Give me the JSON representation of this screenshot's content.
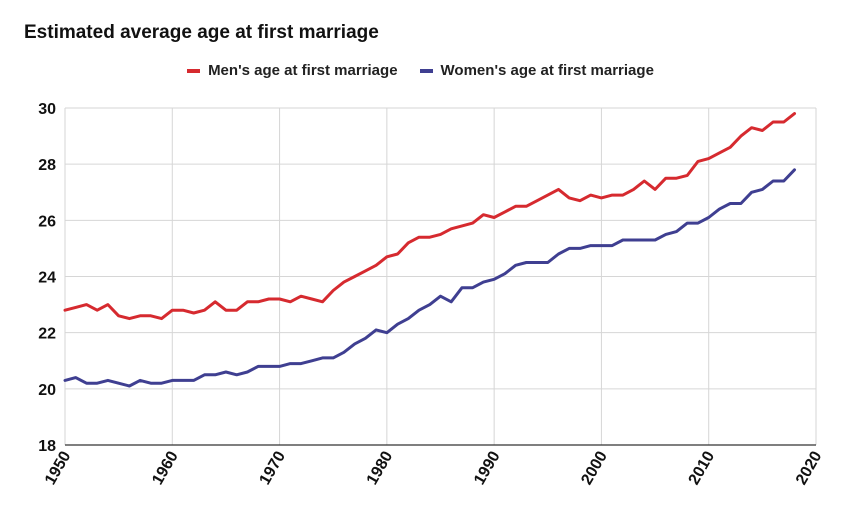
{
  "chart_data": {
    "type": "line",
    "title": "Estimated average age at first marriage",
    "legend_position": "top-center",
    "grid": true,
    "xlim": [
      1950,
      2020
    ],
    "ylim": [
      18,
      30
    ],
    "x_ticks": [
      1950,
      1960,
      1970,
      1980,
      1990,
      2000,
      2010,
      2020
    ],
    "y_ticks": [
      18,
      20,
      22,
      24,
      26,
      28,
      30
    ],
    "x": [
      1950,
      1951,
      1952,
      1953,
      1954,
      1955,
      1956,
      1957,
      1958,
      1959,
      1960,
      1961,
      1962,
      1963,
      1964,
      1965,
      1966,
      1967,
      1968,
      1969,
      1970,
      1971,
      1972,
      1973,
      1974,
      1975,
      1976,
      1977,
      1978,
      1979,
      1980,
      1981,
      1982,
      1983,
      1984,
      1985,
      1986,
      1987,
      1988,
      1989,
      1990,
      1991,
      1992,
      1993,
      1994,
      1995,
      1996,
      1997,
      1998,
      1999,
      2000,
      2001,
      2002,
      2003,
      2004,
      2005,
      2006,
      2007,
      2008,
      2009,
      2010,
      2011,
      2012,
      2013,
      2014,
      2015,
      2016,
      2017,
      2018
    ],
    "series": [
      {
        "name": "Men's age at first marriage",
        "color": "#d62a2f",
        "values": [
          22.8,
          22.9,
          23.0,
          22.8,
          23.0,
          22.6,
          22.5,
          22.6,
          22.6,
          22.5,
          22.8,
          22.8,
          22.7,
          22.8,
          23.1,
          22.8,
          22.8,
          23.1,
          23.1,
          23.2,
          23.2,
          23.1,
          23.3,
          23.2,
          23.1,
          23.5,
          23.8,
          24.0,
          24.2,
          24.4,
          24.7,
          24.8,
          25.2,
          25.4,
          25.4,
          25.5,
          25.7,
          25.8,
          25.9,
          26.2,
          26.1,
          26.3,
          26.5,
          26.5,
          26.7,
          26.9,
          27.1,
          26.8,
          26.7,
          26.9,
          26.8,
          26.9,
          26.9,
          27.1,
          27.4,
          27.1,
          27.5,
          27.5,
          27.6,
          28.1,
          28.2,
          28.4,
          28.6,
          29.0,
          29.3,
          29.2,
          29.5,
          29.5,
          29.8
        ]
      },
      {
        "name": "Women's age at first marriage",
        "color": "#3f3f91",
        "values": [
          20.3,
          20.4,
          20.2,
          20.2,
          20.3,
          20.2,
          20.1,
          20.3,
          20.2,
          20.2,
          20.3,
          20.3,
          20.3,
          20.5,
          20.5,
          20.6,
          20.5,
          20.6,
          20.8,
          20.8,
          20.8,
          20.9,
          20.9,
          21.0,
          21.1,
          21.1,
          21.3,
          21.6,
          21.8,
          22.1,
          22.0,
          22.3,
          22.5,
          22.8,
          23.0,
          23.3,
          23.1,
          23.6,
          23.6,
          23.8,
          23.9,
          24.1,
          24.4,
          24.5,
          24.5,
          24.5,
          24.8,
          25.0,
          25.0,
          25.1,
          25.1,
          25.1,
          25.3,
          25.3,
          25.3,
          25.3,
          25.5,
          25.6,
          25.9,
          25.9,
          26.1,
          26.4,
          26.6,
          26.6,
          27.0,
          27.1,
          27.4,
          27.4,
          27.8
        ]
      }
    ]
  }
}
